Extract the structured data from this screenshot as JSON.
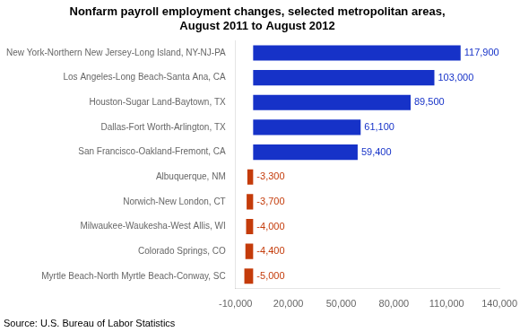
{
  "chart_data": {
    "type": "bar",
    "orientation": "horizontal",
    "title": "Nonfarm payroll employment changes, selected metropolitan areas,\nAugust 2011 to August 2012",
    "annotation": "Source: U.S. Bureau of Labor Statistics",
    "categories": [
      "New York-Northern New Jersey-Long Island, NY-NJ-PA",
      "Los Angeles-Long Beach-Santa Ana, CA",
      "Houston-Sugar Land-Baytown, TX",
      "Dallas-Fort Worth-Arlington, TX",
      "San Francisco-Oakland-Fremont, CA",
      "Albuquerque, NM",
      "Norwich-New London, CT",
      "Milwaukee-Waukesha-West Allis, WI",
      "Colorado Springs, CO",
      "Myrtle Beach-North Myrtle Beach-Conway, SC"
    ],
    "values": [
      117900,
      103000,
      89500,
      61100,
      59400,
      -3300,
      -3700,
      -4000,
      -4400,
      -5000
    ],
    "value_labels": [
      "117,900",
      "103,000",
      "89,500",
      "61,100",
      "59,400",
      "-3,300",
      "-3,700",
      "-4,000",
      "-4,400",
      "-5,000"
    ],
    "colors": [
      "#1632c8",
      "#1632c8",
      "#1632c8",
      "#1632c8",
      "#1632c8",
      "#c43b0a",
      "#c43b0a",
      "#c43b0a",
      "#c43b0a",
      "#c43b0a"
    ],
    "data_labels": true,
    "grid": false,
    "xlim": [
      -10000,
      140000
    ],
    "xticks": [
      {
        "value": -10000,
        "label": "-10,000"
      },
      {
        "value": 20000,
        "label": "20,000"
      },
      {
        "value": 50000,
        "label": "50,000"
      },
      {
        "value": 80000,
        "label": "80,000"
      },
      {
        "value": 110000,
        "label": "110,000"
      },
      {
        "value": 140000,
        "label": "140,000"
      }
    ]
  }
}
